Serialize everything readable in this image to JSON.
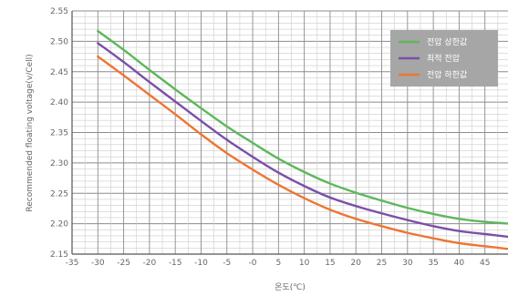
{
  "chart_data": {
    "type": "line",
    "xlabel": "온도(℃)",
    "ylabel": "Recommended floating voltage(v/Cell)",
    "xlim": [
      -35,
      50
    ],
    "ylim": [
      2.15,
      2.55
    ],
    "x_ticks": [
      "-35",
      "-30",
      "-25",
      "-20",
      "-15",
      "-10",
      "-5",
      "-0",
      "5",
      "10",
      "15",
      "20",
      "25",
      "30",
      "35",
      "40",
      "45"
    ],
    "x_tick_values": [
      -35,
      -30,
      -25,
      -20,
      -15,
      -10,
      -5,
      0,
      5,
      10,
      15,
      20,
      25,
      30,
      35,
      40,
      45
    ],
    "y_ticks": [
      "2.55",
      "2.50",
      "2.45",
      "2.40",
      "2.35",
      "2.30",
      "2.25",
      "2.20",
      "2.15"
    ],
    "y_tick_values": [
      2.55,
      2.5,
      2.45,
      2.4,
      2.35,
      2.3,
      2.25,
      2.2,
      2.15
    ],
    "grid": true,
    "legend_position": "top-right",
    "legend_background": "#a6a6a6",
    "x": [
      -30,
      -25,
      -20,
      -15,
      -10,
      -5,
      0,
      5,
      10,
      15,
      20,
      25,
      30,
      35,
      40,
      45,
      50
    ],
    "series": [
      {
        "name": "전압 상한값",
        "color": "#5cb85c",
        "values": [
          2.517,
          2.486,
          2.453,
          2.421,
          2.39,
          2.36,
          2.333,
          2.307,
          2.285,
          2.266,
          2.251,
          2.238,
          2.226,
          2.216,
          2.208,
          2.203,
          2.2
        ]
      },
      {
        "name": "최적 전압",
        "color": "#7a4fa8",
        "values": [
          2.497,
          2.466,
          2.433,
          2.401,
          2.369,
          2.338,
          2.31,
          2.284,
          2.262,
          2.243,
          2.229,
          2.217,
          2.206,
          2.196,
          2.188,
          2.183,
          2.178
        ]
      },
      {
        "name": "전압 하한값",
        "color": "#ee7533",
        "values": [
          2.475,
          2.444,
          2.412,
          2.38,
          2.347,
          2.316,
          2.289,
          2.264,
          2.242,
          2.223,
          2.208,
          2.196,
          2.185,
          2.176,
          2.168,
          2.163,
          2.158
        ]
      }
    ]
  }
}
